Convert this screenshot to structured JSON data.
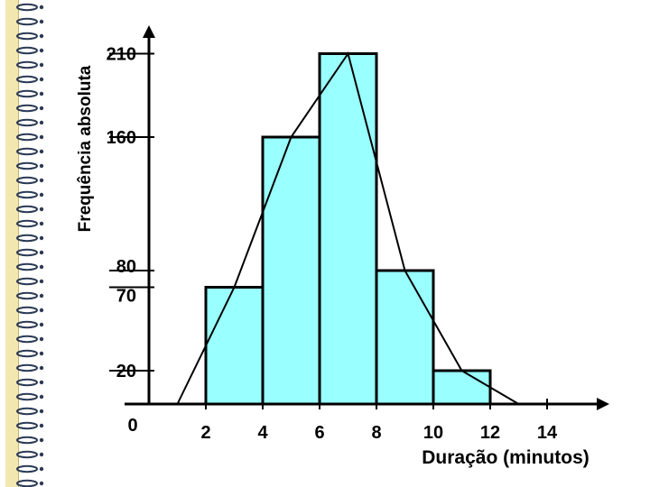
{
  "chart_data": {
    "type": "bar",
    "bins": [
      {
        "from": 2,
        "to": 4,
        "value": 70
      },
      {
        "from": 4,
        "to": 6,
        "value": 160
      },
      {
        "from": 6,
        "to": 8,
        "value": 210
      },
      {
        "from": 8,
        "to": 10,
        "value": 80
      },
      {
        "from": 10,
        "to": 12,
        "value": 20
      }
    ],
    "polygon": {
      "x": [
        1,
        3,
        5,
        7,
        9,
        11,
        13
      ],
      "y": [
        0,
        70,
        160,
        210,
        80,
        20,
        0
      ]
    },
    "x_ticks": [
      "0",
      "2",
      "4",
      "6",
      "8",
      "10",
      "12",
      "14"
    ],
    "y_ticks": [
      "20",
      "70",
      "80",
      "160",
      "210"
    ],
    "xlabel": "Duração (minutos)",
    "ylabel": "Frequência absoluta",
    "xlim": [
      0,
      16
    ],
    "ylim": [
      0,
      230
    ],
    "bar_color": "#99ffff"
  }
}
